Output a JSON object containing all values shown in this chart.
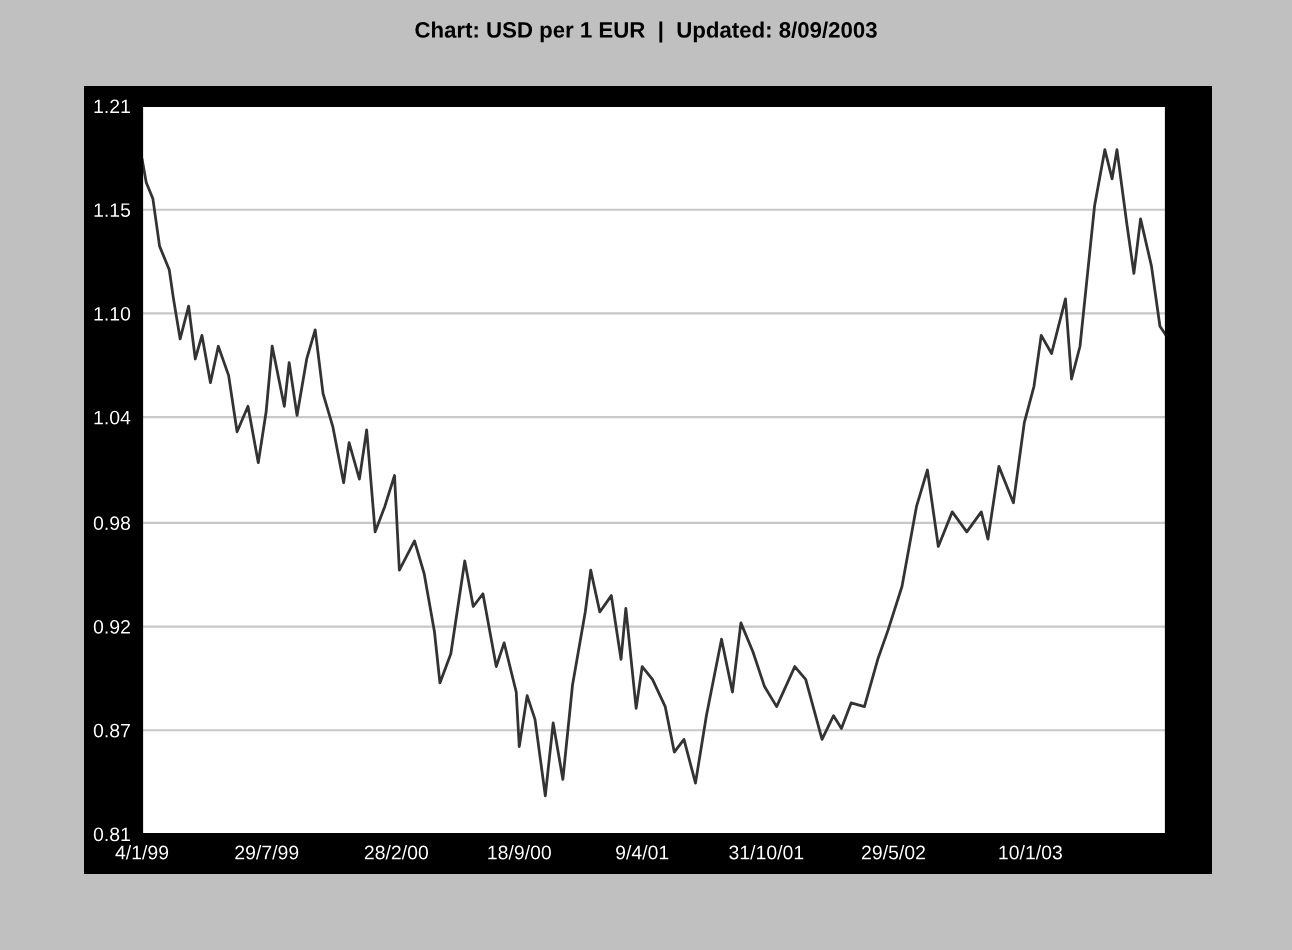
{
  "chart_data": {
    "type": "line",
    "title": "Chart: USD per 1 EUR  |  Updated: 8/09/2003",
    "x": [
      "1999-01-04",
      "1999-01-11",
      "1999-01-22",
      "1999-02-02",
      "1999-02-18",
      "1999-02-25",
      "1999-03-08",
      "1999-03-22",
      "1999-04-02",
      "1999-04-13",
      "1999-04-27",
      "1999-05-10",
      "1999-05-27",
      "1999-06-10",
      "1999-06-28",
      "1999-07-15",
      "1999-07-28",
      "1999-08-07",
      "1999-08-27",
      "1999-09-04",
      "1999-09-17",
      "1999-10-03",
      "1999-10-17",
      "1999-10-30",
      "1999-11-15",
      "1999-12-03",
      "1999-12-12",
      "1999-12-29",
      "2000-01-10",
      "2000-01-24",
      "2000-02-09",
      "2000-02-25",
      "2000-03-04",
      "2000-03-29",
      "2000-04-14",
      "2000-05-01",
      "2000-05-10",
      "2000-05-28",
      "2000-06-20",
      "2000-07-04",
      "2000-07-20",
      "2000-08-11",
      "2000-08-24",
      "2000-09-13",
      "2000-09-18",
      "2000-10-01",
      "2000-10-14",
      "2000-10-31",
      "2000-11-13",
      "2000-11-29",
      "2000-12-15",
      "2001-01-05",
      "2001-01-14",
      "2001-01-29",
      "2001-02-17",
      "2001-03-05",
      "2001-03-13",
      "2001-03-30",
      "2001-04-09",
      "2001-04-26",
      "2001-05-17",
      "2001-06-01",
      "2001-06-17",
      "2001-07-06",
      "2001-07-24",
      "2001-08-18",
      "2001-09-05",
      "2001-09-19",
      "2001-10-09",
      "2001-10-28",
      "2001-11-17",
      "2001-12-17",
      "2002-01-04",
      "2002-01-31",
      "2002-02-19",
      "2002-03-04",
      "2002-03-20",
      "2002-04-11",
      "2002-05-03",
      "2002-05-20",
      "2002-06-12",
      "2002-07-06",
      "2002-07-24",
      "2002-08-11",
      "2002-09-03",
      "2002-09-27",
      "2002-10-21",
      "2002-11-01",
      "2002-11-19",
      "2002-12-13",
      "2002-12-31",
      "2003-01-16",
      "2003-01-28",
      "2003-02-14",
      "2003-03-09",
      "2003-03-19",
      "2003-04-02",
      "2003-04-26",
      "2003-05-13",
      "2003-05-25",
      "2003-06-02",
      "2003-06-18",
      "2003-06-30",
      "2003-07-11",
      "2003-07-29",
      "2003-08-12",
      "2003-08-22"
    ],
    "series": [
      {
        "color": "#333333",
        "values": [
          1.181,
          1.168,
          1.159,
          1.133,
          1.12,
          1.104,
          1.082,
          1.1,
          1.071,
          1.084,
          1.058,
          1.078,
          1.062,
          1.031,
          1.045,
          1.014,
          1.042,
          1.078,
          1.045,
          1.069,
          1.04,
          1.071,
          1.087,
          1.052,
          1.034,
          1.003,
          1.025,
          1.005,
          1.032,
          0.976,
          0.99,
          1.007,
          0.955,
          0.971,
          0.953,
          0.921,
          0.893,
          0.909,
          0.96,
          0.935,
          0.942,
          0.902,
          0.915,
          0.888,
          0.858,
          0.886,
          0.873,
          0.831,
          0.871,
          0.84,
          0.892,
          0.932,
          0.955,
          0.932,
          0.941,
          0.906,
          0.934,
          0.879,
          0.902,
          0.895,
          0.88,
          0.855,
          0.862,
          0.838,
          0.875,
          0.917,
          0.888,
          0.926,
          0.91,
          0.891,
          0.88,
          0.902,
          0.895,
          0.862,
          0.875,
          0.868,
          0.882,
          0.88,
          0.906,
          0.922,
          0.946,
          0.99,
          1.01,
          0.968,
          0.987,
          0.976,
          0.987,
          0.972,
          1.012,
          0.992,
          1.036,
          1.056,
          1.084,
          1.074,
          1.104,
          1.06,
          1.078,
          1.155,
          1.186,
          1.17,
          1.186,
          1.146,
          1.118,
          1.148,
          1.122,
          1.089,
          1.084
        ]
      }
    ],
    "xlim": [
      "1999-01-04",
      "2003-08-22"
    ],
    "xticks": [
      {
        "value": "1999-01-04",
        "label": "4/1/99"
      },
      {
        "value": "1999-07-29",
        "label": "29/7/99"
      },
      {
        "value": "2000-02-28",
        "label": "28/2/00"
      },
      {
        "value": "2000-09-18",
        "label": "18/9/00"
      },
      {
        "value": "2001-04-09",
        "label": "9/4/01"
      },
      {
        "value": "2001-10-31",
        "label": "31/10/01"
      },
      {
        "value": "2002-05-29",
        "label": "29/5/02"
      },
      {
        "value": "2003-01-10",
        "label": "10/1/03"
      }
    ],
    "ylim": [
      0.81,
      1.21
    ],
    "yticks": [
      {
        "value": 0.81,
        "label": "0.81"
      },
      {
        "value": 0.867,
        "label": "0.87"
      },
      {
        "value": 0.924,
        "label": "0.92"
      },
      {
        "value": 0.981,
        "label": "0.98"
      },
      {
        "value": 1.039,
        "label": "1.04"
      },
      {
        "value": 1.096,
        "label": "1.10"
      },
      {
        "value": 1.153,
        "label": "1.15"
      },
      {
        "value": 1.21,
        "label": "1.21"
      }
    ],
    "grid": "y",
    "marker": "none",
    "line_style": "solid"
  }
}
